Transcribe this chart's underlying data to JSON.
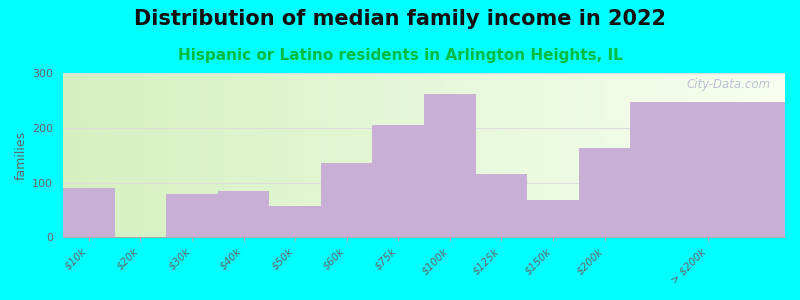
{
  "title": "Distribution of median family income in 2022",
  "subtitle": "Hispanic or Latino residents in Arlington Heights, IL",
  "categories": [
    "$10k",
    "$20k",
    "$30k",
    "$40k",
    "$50k",
    "$60k",
    "$75k",
    "$100k",
    "$125k",
    "$150k",
    "$200k",
    "> $200k"
  ],
  "values": [
    90,
    0,
    80,
    85,
    58,
    135,
    205,
    262,
    115,
    68,
    163,
    248
  ],
  "bar_color": "#c9aed6",
  "background_color": "#00ffff",
  "ylabel": "families",
  "ylim": [
    0,
    300
  ],
  "yticks": [
    0,
    100,
    200,
    300
  ],
  "title_fontsize": 15,
  "subtitle_fontsize": 11,
  "subtitle_color": "#00bb44",
  "title_color": "#111111",
  "watermark": "City-Data.com",
  "tick_label_color": "#666666",
  "grid_color": "#dddddd",
  "bar_widths": [
    1,
    1,
    1,
    1,
    1,
    1,
    1,
    1,
    1,
    1,
    1,
    3
  ],
  "bar_positions": [
    0,
    1,
    2,
    3,
    4,
    5,
    6,
    7,
    8,
    9,
    10,
    12
  ]
}
